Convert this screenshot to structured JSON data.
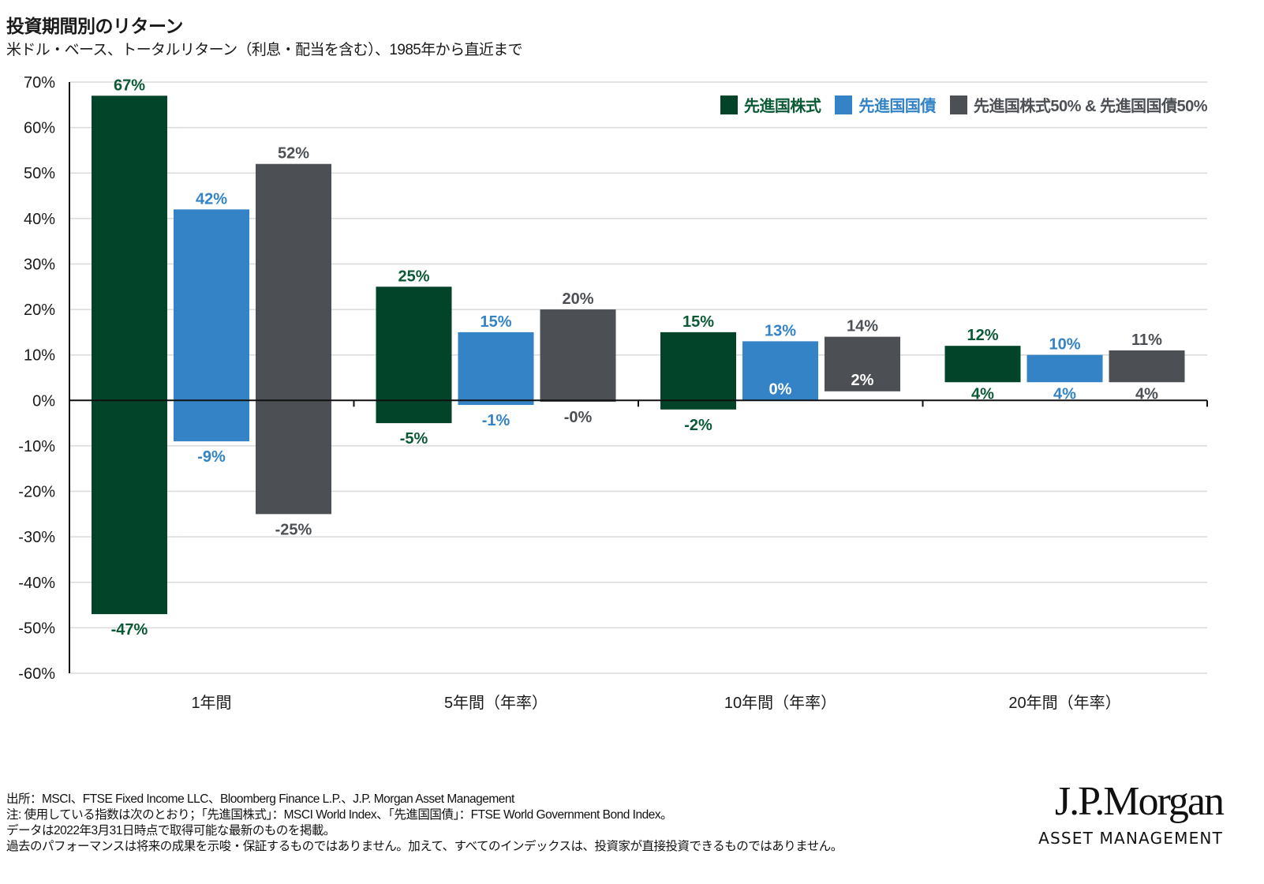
{
  "header": {
    "title": "投資期間別のリターン",
    "subtitle": "米ドル・ベース、トータルリターン（利息・配当を含む）、1985年から直近まで"
  },
  "legend": {
    "items": [
      {
        "label": "先進国株式",
        "color": "#02442A"
      },
      {
        "label": "先進国国債",
        "color": "#3383C6"
      },
      {
        "label": "先進国株式50% & 先進国国債50%",
        "color": "#4C5054"
      }
    ]
  },
  "chart_data": {
    "type": "bar",
    "subtype": "floating-range",
    "title": "投資期間別のリターン",
    "subtitle": "米ドル・ベース、トータルリターン（利息・配当を含む）、1985年から直近まで",
    "xlabel": "",
    "ylabel": "",
    "ylim": [
      -60,
      70
    ],
    "yticks": [
      70,
      60,
      50,
      40,
      30,
      20,
      10,
      0,
      -10,
      -20,
      -30,
      -40,
      -50,
      -60
    ],
    "ytick_labels": [
      "70%",
      "60%",
      "50%",
      "40%",
      "30%",
      "20%",
      "10%",
      "0%",
      "-10%",
      "-20%",
      "-30%",
      "-40%",
      "-50%",
      "-60%"
    ],
    "grid": true,
    "legend_position": "top-right",
    "categories": [
      "1年間",
      "5年間（年率）",
      "10年間（年率）",
      "20年間（年率）"
    ],
    "series": [
      {
        "name": "先進国株式",
        "color": "#02442A",
        "label_color": "#0B5A36",
        "max": [
          67,
          25,
          15,
          12
        ],
        "min": [
          -47,
          -5,
          -2,
          4
        ],
        "max_labels": [
          "67%",
          "25%",
          "15%",
          "12%"
        ],
        "min_labels": [
          "-47%",
          "-5%",
          "-2%",
          "4%"
        ]
      },
      {
        "name": "先進国国債",
        "color": "#3383C6",
        "label_color": "#3383C6",
        "max": [
          42,
          15,
          13,
          10
        ],
        "min": [
          -9,
          -1,
          0,
          4
        ],
        "max_labels": [
          "42%",
          "15%",
          "13%",
          "10%"
        ],
        "min_labels": [
          "-9%",
          "-1%",
          "0%",
          "4%"
        ]
      },
      {
        "name": "先進国株式50% & 先進国国債50%",
        "color": "#4C5054",
        "label_color": "#4C5054",
        "max": [
          52,
          20,
          14,
          11
        ],
        "min": [
          -25,
          -0.3,
          2,
          4
        ],
        "max_labels": [
          "52%",
          "20%",
          "14%",
          "11%"
        ],
        "min_labels": [
          "-25%",
          "-0%",
          "2%",
          "4%"
        ]
      }
    ]
  },
  "footer": {
    "lines": [
      "出所：MSCI、FTSE Fixed Income LLC、Bloomberg Finance L.P.、J.P. Morgan Asset Management",
      "注: 使用している指数は次のとおり；「先進国株式」：MSCI World Index、「先進国国債」：FTSE World Government Bond Index。",
      "データは2022年3月31日時点で取得可能な最新のものを掲載。",
      "過去のパフォーマンスは将来の成果を示唆・保証するものではありません。加えて、すべてのインデックスは、投資家が直接投資できるものではありません。"
    ]
  },
  "logo": {
    "name": "J.P.Morgan",
    "tagline": "ASSET MANAGEMENT"
  }
}
